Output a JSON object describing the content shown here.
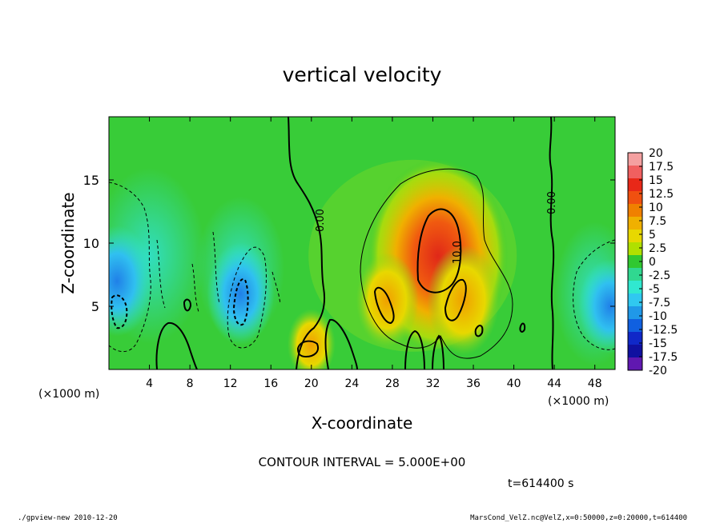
{
  "chart_data": {
    "type": "heatmap",
    "title": "vertical velocity",
    "xlabel": "X-coordinate",
    "ylabel": "Z-coordinate",
    "x_unit_label": "(×1000 m)",
    "y_unit_label": "(×1000 m)",
    "xlim": [
      0,
      50
    ],
    "ylim": [
      0,
      20
    ],
    "x_ticks": [
      "4",
      "8",
      "12",
      "16",
      "20",
      "24",
      "28",
      "32",
      "36",
      "40",
      "44",
      "48"
    ],
    "y_ticks": [
      "5",
      "10",
      "15"
    ],
    "colorbar_labels": [
      "20",
      "17.5",
      "15",
      "12.5",
      "10",
      "7.5",
      "5",
      "2.5",
      "0",
      "-2.5",
      "-5",
      "-7.5",
      "-10",
      "-12.5",
      "-15",
      "-17.5",
      "-20"
    ],
    "colorbar_colors": [
      "#f4a0a0",
      "#f06060",
      "#e82818",
      "#f05010",
      "#f08000",
      "#f0b000",
      "#e8d800",
      "#b0e000",
      "#30c830",
      "#30d890",
      "#30e8d0",
      "#30c8f0",
      "#2098e8",
      "#1060e0",
      "#1028c8",
      "#1010a0",
      "#6018b0"
    ],
    "contour_labels": [
      "0.00",
      "0.00",
      "10.0"
    ],
    "contour_interval": "CONTOUR INTERVAL = 5.000E+00",
    "time_label": "t=614400 s",
    "grid": false,
    "legend": "colorbar-right",
    "features": [
      {
        "kind": "updraft",
        "x": 32.5,
        "z": 9,
        "peak": 14
      },
      {
        "kind": "updraft",
        "x": 27.5,
        "z": 5.5,
        "peak": 7
      },
      {
        "kind": "updraft",
        "x": 35,
        "z": 5.5,
        "peak": 9
      },
      {
        "kind": "updraft",
        "x": 20,
        "z": 2,
        "peak": 4
      },
      {
        "kind": "downdraft",
        "x": 0.8,
        "z": 7,
        "peak": -9
      },
      {
        "kind": "downdraft",
        "x": 13,
        "z": 6,
        "peak": -8
      },
      {
        "kind": "downdraft",
        "x": 49.5,
        "z": 5,
        "peak": -7
      }
    ]
  },
  "footer": {
    "left": "./gpview-new  2010-12-20",
    "right": "MarsCond_VelZ.nc@VelZ,x=0:50000,z=0:20000,t=614400"
  }
}
